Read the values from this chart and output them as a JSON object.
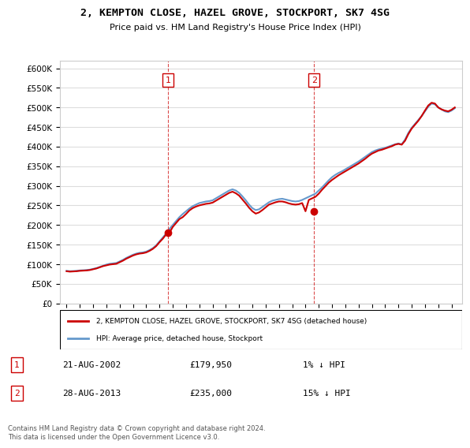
{
  "title": "2, KEMPTON CLOSE, HAZEL GROVE, STOCKPORT, SK7 4SG",
  "subtitle": "Price paid vs. HM Land Registry's House Price Index (HPI)",
  "ylabel": "",
  "xlabel": "",
  "ylim": [
    0,
    620000
  ],
  "yticks": [
    0,
    50000,
    100000,
    150000,
    200000,
    250000,
    300000,
    350000,
    400000,
    450000,
    500000,
    550000,
    600000
  ],
  "ytick_labels": [
    "£0",
    "£50K",
    "£100K",
    "£150K",
    "£200K",
    "£250K",
    "£300K",
    "£350K",
    "£400K",
    "£450K",
    "£500K",
    "£550K",
    "£600K"
  ],
  "sale1": {
    "date_num": 2002.64,
    "price": 179950,
    "label": "1",
    "date_str": "21-AUG-2002"
  },
  "sale2": {
    "date_num": 2013.65,
    "price": 235000,
    "label": "2",
    "date_str": "28-AUG-2013"
  },
  "sale_color": "#cc0000",
  "hpi_color": "#6699cc",
  "legend_sale_label": "2, KEMPTON CLOSE, HAZEL GROVE, STOCKPORT, SK7 4SG (detached house)",
  "legend_hpi_label": "HPI: Average price, detached house, Stockport",
  "table_rows": [
    {
      "num": "1",
      "date": "21-AUG-2002",
      "price": "£179,950",
      "note": "1% ↓ HPI"
    },
    {
      "num": "2",
      "date": "28-AUG-2013",
      "price": "£235,000",
      "note": "15% ↓ HPI"
    }
  ],
  "footer": "Contains HM Land Registry data © Crown copyright and database right 2024.\nThis data is licensed under the Open Government Licence v3.0.",
  "background_color": "#ffffff",
  "grid_color": "#dddddd",
  "hpi_data": {
    "years": [
      1995,
      1995.25,
      1995.5,
      1995.75,
      1996,
      1996.25,
      1996.5,
      1996.75,
      1997,
      1997.25,
      1997.5,
      1997.75,
      1998,
      1998.25,
      1998.5,
      1998.75,
      1999,
      1999.25,
      1999.5,
      1999.75,
      2000,
      2000.25,
      2000.5,
      2000.75,
      2001,
      2001.25,
      2001.5,
      2001.75,
      2002,
      2002.25,
      2002.5,
      2002.75,
      2003,
      2003.25,
      2003.5,
      2003.75,
      2004,
      2004.25,
      2004.5,
      2004.75,
      2005,
      2005.25,
      2005.5,
      2005.75,
      2006,
      2006.25,
      2006.5,
      2006.75,
      2007,
      2007.25,
      2007.5,
      2007.75,
      2008,
      2008.25,
      2008.5,
      2008.75,
      2009,
      2009.25,
      2009.5,
      2009.75,
      2010,
      2010.25,
      2010.5,
      2010.75,
      2011,
      2011.25,
      2011.5,
      2011.75,
      2012,
      2012.25,
      2012.5,
      2012.75,
      2013,
      2013.25,
      2013.5,
      2013.75,
      2014,
      2014.25,
      2014.5,
      2014.75,
      2015,
      2015.25,
      2015.5,
      2015.75,
      2016,
      2016.25,
      2016.5,
      2016.75,
      2017,
      2017.25,
      2017.5,
      2017.75,
      2018,
      2018.25,
      2018.5,
      2018.75,
      2019,
      2019.25,
      2019.5,
      2019.75,
      2020,
      2020.25,
      2020.5,
      2020.75,
      2021,
      2021.25,
      2021.5,
      2021.75,
      2022,
      2022.25,
      2022.5,
      2022.75,
      2023,
      2023.25,
      2023.5,
      2023.75,
      2024,
      2024.25
    ],
    "values": [
      83000,
      82000,
      82500,
      83000,
      84000,
      84500,
      85000,
      86000,
      88000,
      90000,
      93000,
      96000,
      99000,
      101000,
      102000,
      103000,
      107000,
      111000,
      116000,
      120000,
      124000,
      127000,
      129000,
      130000,
      132000,
      136000,
      141000,
      148000,
      158000,
      168000,
      178000,
      190000,
      200000,
      210000,
      220000,
      228000,
      235000,
      242000,
      248000,
      252000,
      256000,
      258000,
      260000,
      261000,
      263000,
      268000,
      273000,
      278000,
      283000,
      288000,
      291000,
      288000,
      282000,
      273000,
      263000,
      252000,
      243000,
      238000,
      240000,
      246000,
      252000,
      258000,
      262000,
      264000,
      266000,
      267000,
      265000,
      263000,
      261000,
      260000,
      261000,
      264000,
      268000,
      272000,
      276000,
      280000,
      288000,
      296000,
      305000,
      314000,
      322000,
      328000,
      333000,
      337000,
      342000,
      347000,
      352000,
      357000,
      362000,
      368000,
      374000,
      380000,
      386000,
      390000,
      393000,
      395000,
      397000,
      400000,
      403000,
      406000,
      408000,
      406000,
      418000,
      435000,
      448000,
      458000,
      468000,
      478000,
      490000,
      502000,
      510000,
      508000,
      500000,
      495000,
      490000,
      488000,
      492000,
      498000
    ]
  },
  "sale_data": {
    "years": [
      1995,
      1995.25,
      1995.5,
      1995.75,
      1996,
      1996.25,
      1996.5,
      1996.75,
      1997,
      1997.25,
      1997.5,
      1997.75,
      1998,
      1998.25,
      1998.5,
      1998.75,
      1999,
      1999.25,
      1999.5,
      1999.75,
      2000,
      2000.25,
      2000.5,
      2000.75,
      2001,
      2001.25,
      2001.5,
      2001.75,
      2002,
      2002.25,
      2002.5,
      2002.75,
      2003,
      2003.25,
      2003.5,
      2003.75,
      2004,
      2004.25,
      2004.5,
      2004.75,
      2005,
      2005.25,
      2005.5,
      2005.75,
      2006,
      2006.25,
      2006.5,
      2006.75,
      2007,
      2007.25,
      2007.5,
      2007.75,
      2008,
      2008.25,
      2008.5,
      2008.75,
      2009,
      2009.25,
      2009.5,
      2009.75,
      2010,
      2010.25,
      2010.5,
      2010.75,
      2011,
      2011.25,
      2011.5,
      2011.75,
      2012,
      2012.25,
      2012.5,
      2012.75,
      2013,
      2013.25,
      2013.5,
      2013.75,
      2014,
      2014.25,
      2014.5,
      2014.75,
      2015,
      2015.25,
      2015.5,
      2015.75,
      2016,
      2016.25,
      2016.5,
      2016.75,
      2017,
      2017.25,
      2017.5,
      2017.75,
      2018,
      2018.25,
      2018.5,
      2018.75,
      2019,
      2019.25,
      2019.5,
      2019.75,
      2020,
      2020.25,
      2020.5,
      2020.75,
      2021,
      2021.25,
      2021.5,
      2021.75,
      2022,
      2022.25,
      2022.5,
      2022.75,
      2023,
      2023.25,
      2023.5,
      2023.75,
      2024,
      2024.25
    ],
    "values": [
      82000,
      81000,
      81500,
      82000,
      83000,
      83500,
      84000,
      85000,
      87000,
      89000,
      92000,
      95000,
      97000,
      99000,
      100000,
      101000,
      105000,
      109000,
      114000,
      118000,
      122000,
      125000,
      127000,
      128000,
      130000,
      134000,
      139000,
      146000,
      156000,
      165000,
      176000,
      180000,
      195000,
      205000,
      215000,
      220000,
      228000,
      237000,
      243000,
      247000,
      250000,
      252000,
      254000,
      255000,
      257000,
      262000,
      267000,
      272000,
      277000,
      282000,
      285000,
      281000,
      275000,
      265000,
      255000,
      244000,
      235000,
      229000,
      232000,
      238000,
      245000,
      252000,
      255000,
      258000,
      260000,
      260000,
      258000,
      255000,
      253000,
      252000,
      253000,
      256000,
      235000,
      264000,
      268000,
      272000,
      280000,
      290000,
      299000,
      308000,
      315000,
      321000,
      327000,
      332000,
      337000,
      342000,
      347000,
      352000,
      357000,
      363000,
      369000,
      376000,
      382000,
      386000,
      390000,
      392000,
      395000,
      398000,
      401000,
      405000,
      407000,
      405000,
      415000,
      432000,
      446000,
      456000,
      466000,
      478000,
      492000,
      505000,
      512000,
      510000,
      500000,
      495000,
      492000,
      490000,
      494000,
      500000
    ]
  }
}
